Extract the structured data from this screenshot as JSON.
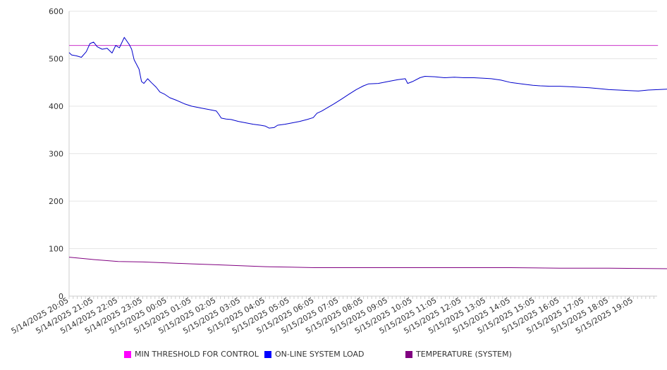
{
  "chart_data": {
    "type": "line",
    "title": "",
    "xlabel": "",
    "ylabel": "",
    "ylim": [
      0,
      600
    ],
    "y_ticks": [
      0,
      100,
      200,
      300,
      400,
      500,
      600
    ],
    "grid": "horizontal",
    "legend_position": "bottom",
    "x_tick_labels": [
      "5/14/2025 20:05",
      "5/14/2025 21:05",
      "5/14/2025 22:05",
      "5/14/2025 23:05",
      "5/15/2025 00:05",
      "5/15/2025 01:05",
      "5/15/2025 02:05",
      "5/15/2025 03:05",
      "5/15/2025 04:05",
      "5/15/2025 05:05",
      "5/15/2025 06:05",
      "5/15/2025 07:05",
      "5/15/2025 08:05",
      "5/15/2025 09:05",
      "5/15/2025 10:05",
      "5/15/2025 11:05",
      "5/15/2025 12:05",
      "5/15/2025 13:05",
      "5/15/2025 14:05",
      "5/15/2025 15:05",
      "5/15/2025 16:05",
      "5/15/2025 17:05",
      "5/15/2025 18:05",
      "5/15/2025 19:05"
    ],
    "x_range_hours": [
      0,
      24
    ],
    "series": [
      {
        "name": "MIN THRESHOLD FOR CONTROL",
        "color": "#cc33cc",
        "points": [
          [
            0,
            528
          ],
          [
            24,
            528
          ]
        ]
      },
      {
        "name": "ON-LINE SYSTEM LOAD",
        "color": "#0000cc",
        "points": [
          [
            0,
            513
          ],
          [
            0.1,
            508
          ],
          [
            0.3,
            506
          ],
          [
            0.5,
            503
          ],
          [
            0.7,
            515
          ],
          [
            0.85,
            532
          ],
          [
            1.0,
            535
          ],
          [
            1.15,
            525
          ],
          [
            1.35,
            520
          ],
          [
            1.55,
            522
          ],
          [
            1.75,
            512
          ],
          [
            1.9,
            528
          ],
          [
            2.05,
            523
          ],
          [
            2.25,
            545
          ],
          [
            2.45,
            530
          ],
          [
            2.55,
            520
          ],
          [
            2.65,
            498
          ],
          [
            2.85,
            478
          ],
          [
            2.95,
            452
          ],
          [
            3.05,
            448
          ],
          [
            3.2,
            458
          ],
          [
            3.35,
            450
          ],
          [
            3.55,
            440
          ],
          [
            3.7,
            430
          ],
          [
            3.9,
            425
          ],
          [
            4.1,
            418
          ],
          [
            4.4,
            412
          ],
          [
            4.7,
            405
          ],
          [
            5.0,
            400
          ],
          [
            5.4,
            396
          ],
          [
            5.8,
            392
          ],
          [
            6.0,
            390
          ],
          [
            6.1,
            383
          ],
          [
            6.2,
            375
          ],
          [
            6.4,
            373
          ],
          [
            6.6,
            372
          ],
          [
            6.9,
            368
          ],
          [
            7.2,
            365
          ],
          [
            7.5,
            362
          ],
          [
            7.8,
            360
          ],
          [
            8.0,
            358
          ],
          [
            8.15,
            354
          ],
          [
            8.35,
            355
          ],
          [
            8.5,
            360
          ],
          [
            8.8,
            362
          ],
          [
            9.1,
            365
          ],
          [
            9.4,
            368
          ],
          [
            9.7,
            372
          ],
          [
            9.95,
            376
          ],
          [
            10.1,
            385
          ],
          [
            10.3,
            390
          ],
          [
            10.5,
            396
          ],
          [
            10.8,
            405
          ],
          [
            11.1,
            415
          ],
          [
            11.4,
            425
          ],
          [
            11.7,
            435
          ],
          [
            12.0,
            443
          ],
          [
            12.2,
            447
          ],
          [
            12.6,
            448
          ],
          [
            13.0,
            452
          ],
          [
            13.4,
            456
          ],
          [
            13.7,
            458
          ],
          [
            13.8,
            448
          ],
          [
            14.0,
            452
          ],
          [
            14.3,
            460
          ],
          [
            14.5,
            463
          ],
          [
            14.9,
            462
          ],
          [
            15.3,
            460
          ],
          [
            15.7,
            461
          ],
          [
            16.1,
            460
          ],
          [
            16.5,
            460
          ],
          [
            16.9,
            459
          ],
          [
            17.2,
            458
          ],
          [
            17.6,
            455
          ],
          [
            18.0,
            450
          ],
          [
            18.3,
            448
          ],
          [
            18.6,
            446
          ],
          [
            18.9,
            444
          ],
          [
            19.2,
            443
          ],
          [
            19.6,
            442
          ],
          [
            20.0,
            442
          ],
          [
            20.4,
            441
          ],
          [
            20.8,
            440
          ],
          [
            21.2,
            439
          ],
          [
            21.6,
            437
          ],
          [
            22.0,
            435
          ],
          [
            22.4,
            434
          ],
          [
            22.8,
            433
          ],
          [
            23.2,
            432
          ],
          [
            23.6,
            434
          ],
          [
            24.0,
            435
          ],
          [
            24.4,
            436
          ],
          [
            24.8,
            437
          ],
          [
            25.2,
            436
          ],
          [
            25.6,
            438
          ],
          [
            26.0,
            437
          ],
          [
            26.4,
            432
          ],
          [
            26.8,
            433
          ],
          [
            27.0,
            432
          ],
          [
            27.1,
            428
          ],
          [
            27.25,
            430
          ]
        ]
      },
      {
        "name": "TEMPERATURE (SYSTEM)",
        "color": "#800080",
        "points": [
          [
            0,
            82
          ],
          [
            1,
            77
          ],
          [
            2,
            73
          ],
          [
            3,
            72
          ],
          [
            4,
            70
          ],
          [
            5,
            68
          ],
          [
            6,
            66
          ],
          [
            7,
            64
          ],
          [
            8,
            62
          ],
          [
            9,
            61
          ],
          [
            10,
            60
          ],
          [
            12,
            60
          ],
          [
            14,
            60
          ],
          [
            16,
            60
          ],
          [
            18,
            60
          ],
          [
            20,
            59
          ],
          [
            22,
            59
          ],
          [
            24,
            58
          ],
          [
            26,
            57
          ],
          [
            27.25,
            56
          ]
        ]
      }
    ]
  }
}
